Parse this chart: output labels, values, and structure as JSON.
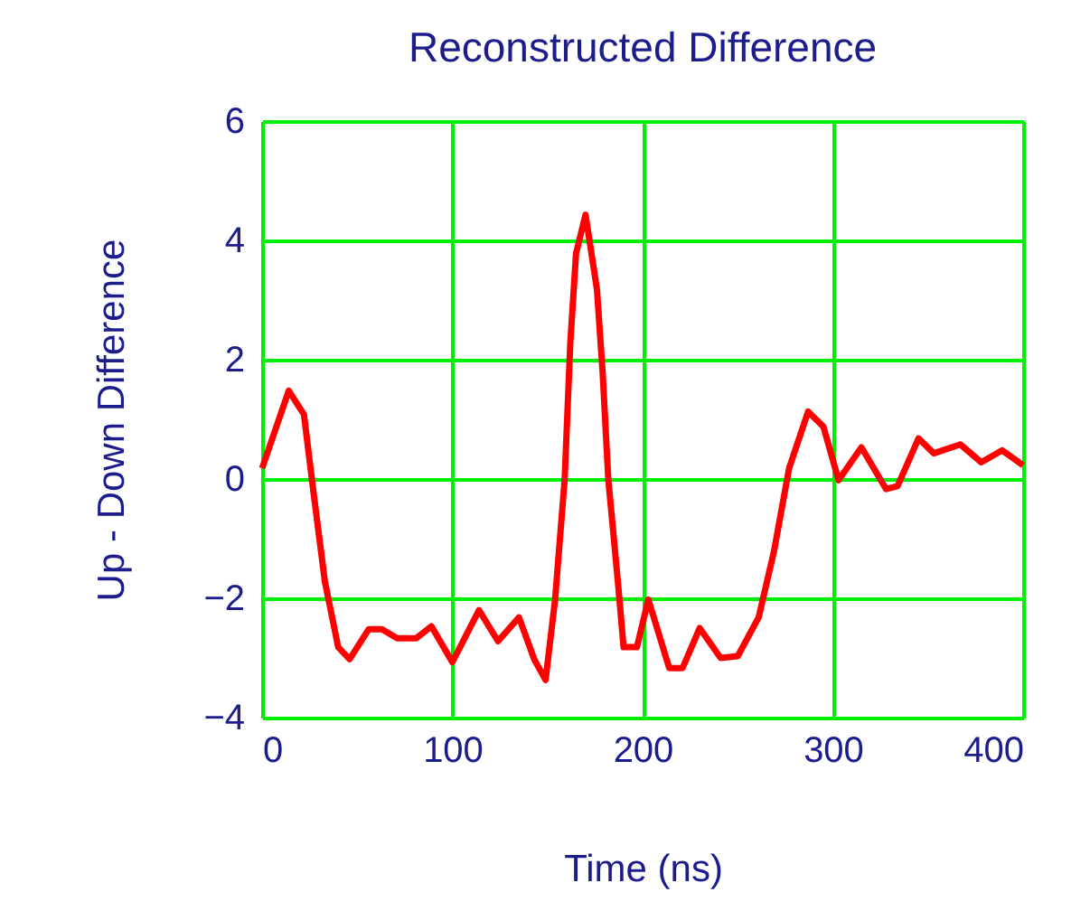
{
  "chart_data": {
    "type": "line",
    "title": "Reconstructed Difference",
    "xlabel": "Time (ns)",
    "ylabel": "Up - Down Difference",
    "x": [
      0,
      14,
      22,
      27,
      33,
      40,
      46,
      56,
      63,
      71,
      81,
      89,
      100,
      114,
      124,
      135,
      143,
      149,
      154,
      159,
      162,
      165,
      170,
      176,
      179,
      182,
      187,
      190,
      197,
      203,
      214,
      221,
      230,
      241,
      250,
      261,
      269,
      277,
      287,
      295,
      303,
      315,
      328,
      334,
      345,
      353,
      367,
      378,
      389,
      400
    ],
    "series": [
      {
        "color": "#ff0000",
        "values": [
          0.18,
          1.48,
          1.08,
          -0.22,
          -1.72,
          -2.82,
          -3.02,
          -2.52,
          -2.52,
          -2.67,
          -2.67,
          -2.47,
          -3.07,
          -2.2,
          -2.72,
          -2.32,
          -3.02,
          -3.37,
          -2.02,
          -0.02,
          2.28,
          3.78,
          4.43,
          3.18,
          1.78,
          -0.02,
          -1.72,
          -2.82,
          -2.82,
          -2.02,
          -3.17,
          -3.17,
          -2.5,
          -3.0,
          -2.97,
          -2.32,
          -1.22,
          0.18,
          1.13,
          0.88,
          -0.02,
          0.53,
          -0.17,
          -0.12,
          0.68,
          0.43,
          0.58,
          0.28,
          0.48,
          0.23
        ]
      }
    ],
    "xlim": [
      0,
      400
    ],
    "xticks": [
      0,
      100,
      200,
      300,
      400
    ],
    "ylim": [
      -4,
      6
    ],
    "yticks": [
      -4,
      -2,
      0,
      2,
      4,
      6
    ],
    "grid": true,
    "marker": "none",
    "line_style": "solid"
  }
}
